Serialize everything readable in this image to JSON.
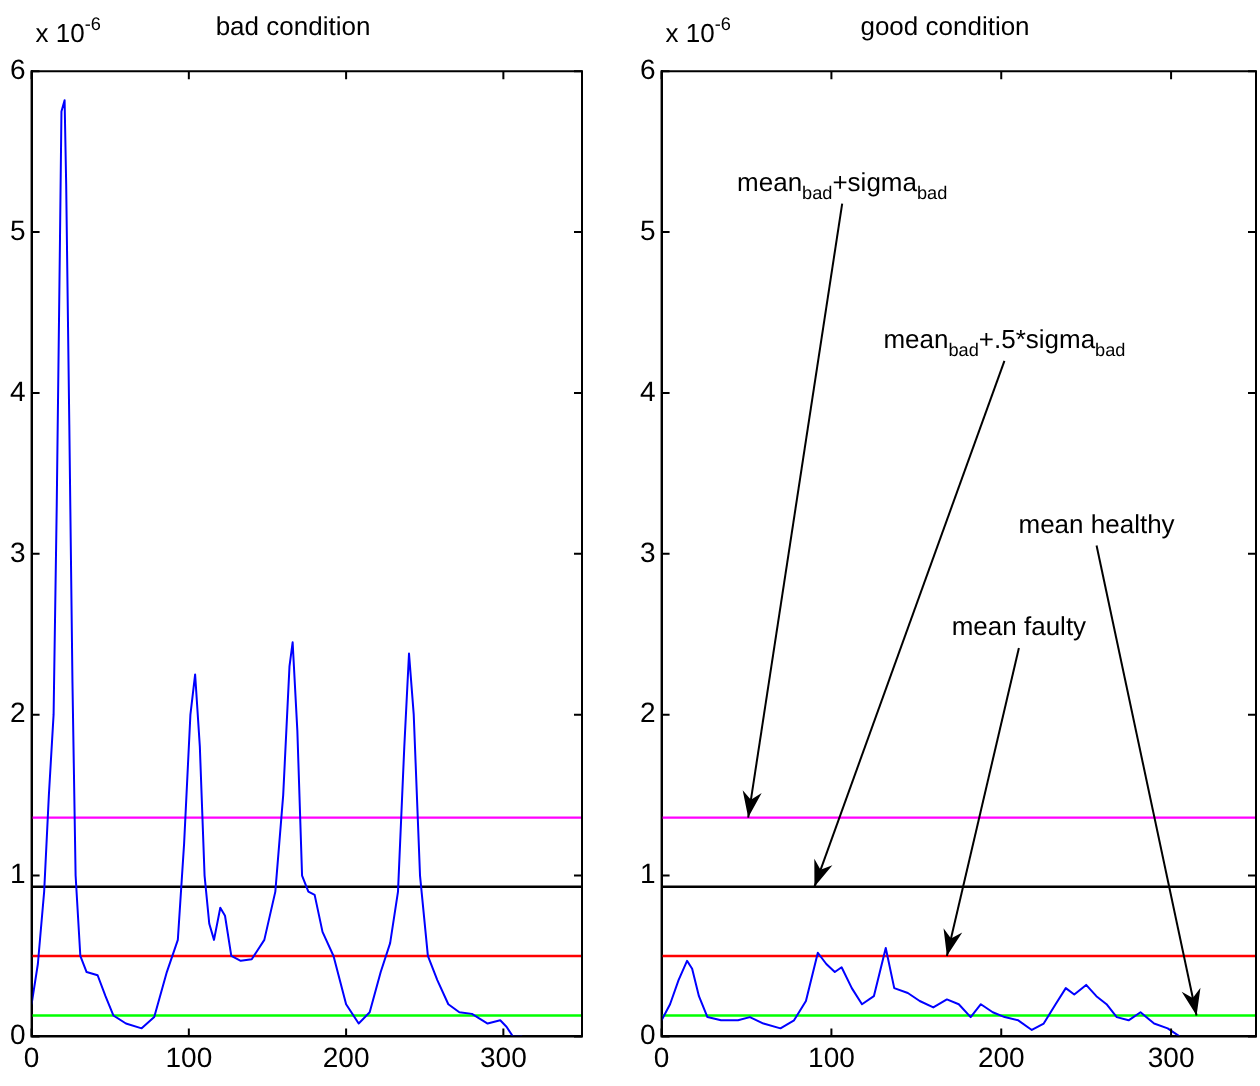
{
  "chart_data": [
    {
      "type": "line",
      "title": "bad condition",
      "annotations": [
        "x 10$^{-6}$"
      ],
      "xlim": [
        0,
        350
      ],
      "xticks": [
        0,
        100,
        200,
        300
      ],
      "ylim": [
        0,
        6
      ],
      "yticks": [
        0,
        1,
        2,
        3,
        4,
        5,
        6
      ],
      "grid": false,
      "legend": false,
      "marker": "none",
      "ref_lines": [
        {
          "axis": "y",
          "value": 1.36,
          "color": "#ff00ff"
        },
        {
          "axis": "y",
          "value": 0.93,
          "color": "#000000"
        },
        {
          "axis": "y",
          "value": 0.5,
          "color": "#ff0000"
        },
        {
          "axis": "y",
          "value": 0.13,
          "color": "#00ff00"
        }
      ],
      "series": [
        {
          "color": "#0000ff",
          "x": [
            0,
            4,
            8,
            11,
            14,
            16,
            18,
            19,
            21,
            22,
            24,
            26,
            28,
            31,
            35,
            42,
            47,
            52,
            60,
            70,
            78,
            86,
            93,
            97,
            101,
            104,
            107,
            110,
            113,
            116,
            120,
            123,
            127,
            133,
            140,
            148,
            155,
            160,
            164,
            166,
            169,
            172,
            176,
            180,
            185,
            192,
            200,
            208,
            215,
            222,
            228,
            233,
            237,
            240,
            243,
            247,
            252,
            258,
            265,
            272,
            280,
            290,
            298,
            302,
            306,
            312
          ],
          "values": [
            0.2,
            0.45,
            0.9,
            1.5,
            2.0,
            3.3,
            4.9,
            5.75,
            5.82,
            5.3,
            3.8,
            2.2,
            1.0,
            0.5,
            0.4,
            0.38,
            0.25,
            0.13,
            0.08,
            0.05,
            0.12,
            0.4,
            0.6,
            1.2,
            2.0,
            2.25,
            1.8,
            1.0,
            0.7,
            0.6,
            0.8,
            0.75,
            0.5,
            0.47,
            0.48,
            0.6,
            0.9,
            1.5,
            2.3,
            2.45,
            1.9,
            1.0,
            0.9,
            0.88,
            0.65,
            0.5,
            0.2,
            0.08,
            0.15,
            0.4,
            0.58,
            0.9,
            1.8,
            2.38,
            2.0,
            1.0,
            0.5,
            0.35,
            0.2,
            0.15,
            0.14,
            0.08,
            0.1,
            0.06,
            0,
            0
          ]
        }
      ]
    },
    {
      "type": "line",
      "title": "good condition",
      "annotations": [
        "x 10$^{-6}$",
        {
          "text": "mean$_{bad}$+sigma$_{bad}$",
          "x": 51,
          "y": 1.36
        },
        {
          "text": "mean$_{bad}$+.5*sigma$_{bad}$",
          "x": 90,
          "y": 0.93
        },
        {
          "text": "mean healthy",
          "x": 315,
          "y": 0.13
        },
        {
          "text": "mean faulty",
          "x": 168,
          "y": 0.5
        }
      ],
      "xlim": [
        0,
        350
      ],
      "xticks": [
        0,
        100,
        200,
        300
      ],
      "ylim": [
        0,
        6
      ],
      "yticks": [
        0,
        1,
        2,
        3,
        4,
        5,
        6
      ],
      "grid": false,
      "legend": false,
      "marker": "none",
      "ref_lines": [
        {
          "axis": "y",
          "value": 1.36,
          "color": "#ff00ff"
        },
        {
          "axis": "y",
          "value": 0.93,
          "color": "#000000"
        },
        {
          "axis": "y",
          "value": 0.5,
          "color": "#ff0000"
        },
        {
          "axis": "y",
          "value": 0.13,
          "color": "#00ff00"
        }
      ],
      "series": [
        {
          "color": "#0000ff",
          "x": [
            0,
            5,
            10,
            15,
            18,
            22,
            27,
            35,
            45,
            52,
            60,
            70,
            78,
            85,
            92,
            97,
            102,
            106,
            112,
            118,
            125,
            132,
            137,
            145,
            152,
            160,
            168,
            175,
            182,
            188,
            195,
            202,
            210,
            218,
            225,
            232,
            238,
            243,
            250,
            256,
            262,
            268,
            275,
            282,
            290,
            298,
            305
          ],
          "values": [
            0.1,
            0.2,
            0.35,
            0.47,
            0.42,
            0.25,
            0.12,
            0.1,
            0.1,
            0.12,
            0.08,
            0.05,
            0.1,
            0.22,
            0.52,
            0.45,
            0.4,
            0.43,
            0.3,
            0.2,
            0.25,
            0.55,
            0.3,
            0.27,
            0.22,
            0.18,
            0.23,
            0.2,
            0.12,
            0.2,
            0.15,
            0.12,
            0.1,
            0.04,
            0.08,
            0.2,
            0.3,
            0.26,
            0.32,
            0.25,
            0.2,
            0.12,
            0.1,
            0.15,
            0.08,
            0.05,
            0
          ]
        }
      ]
    }
  ]
}
